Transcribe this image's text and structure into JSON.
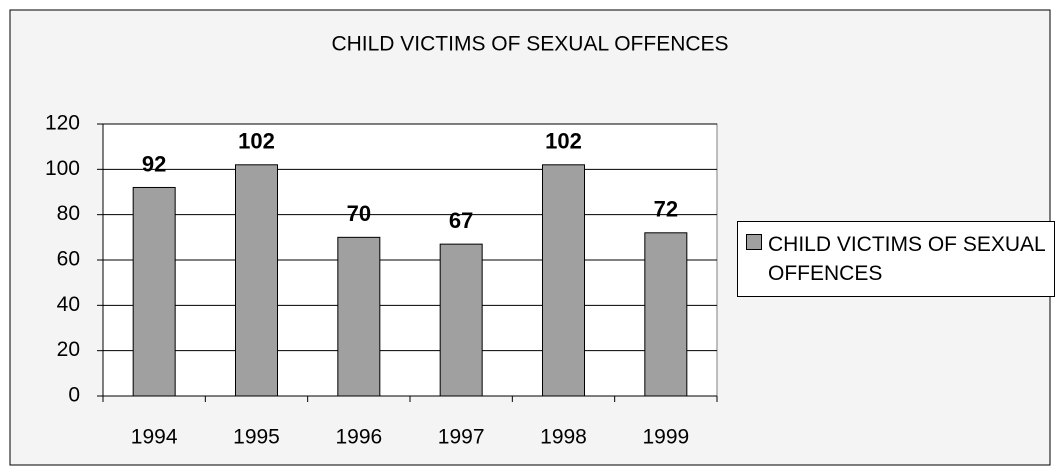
{
  "chart_data": {
    "type": "bar",
    "title": "CHILD VICTIMS OF SEXUAL OFFENCES",
    "categories": [
      "1994",
      "1995",
      "1996",
      "1997",
      "1998",
      "1999"
    ],
    "series": [
      {
        "name": "CHILD VICTIMS OF SEXUAL OFFENCES",
        "color": "#a0a0a0",
        "values": [
          92,
          102,
          70,
          67,
          102,
          72
        ]
      }
    ],
    "ylim": [
      0,
      120
    ],
    "yticks": [
      0,
      20,
      40,
      60,
      80,
      100,
      120
    ],
    "grid": true,
    "legend": "right"
  }
}
